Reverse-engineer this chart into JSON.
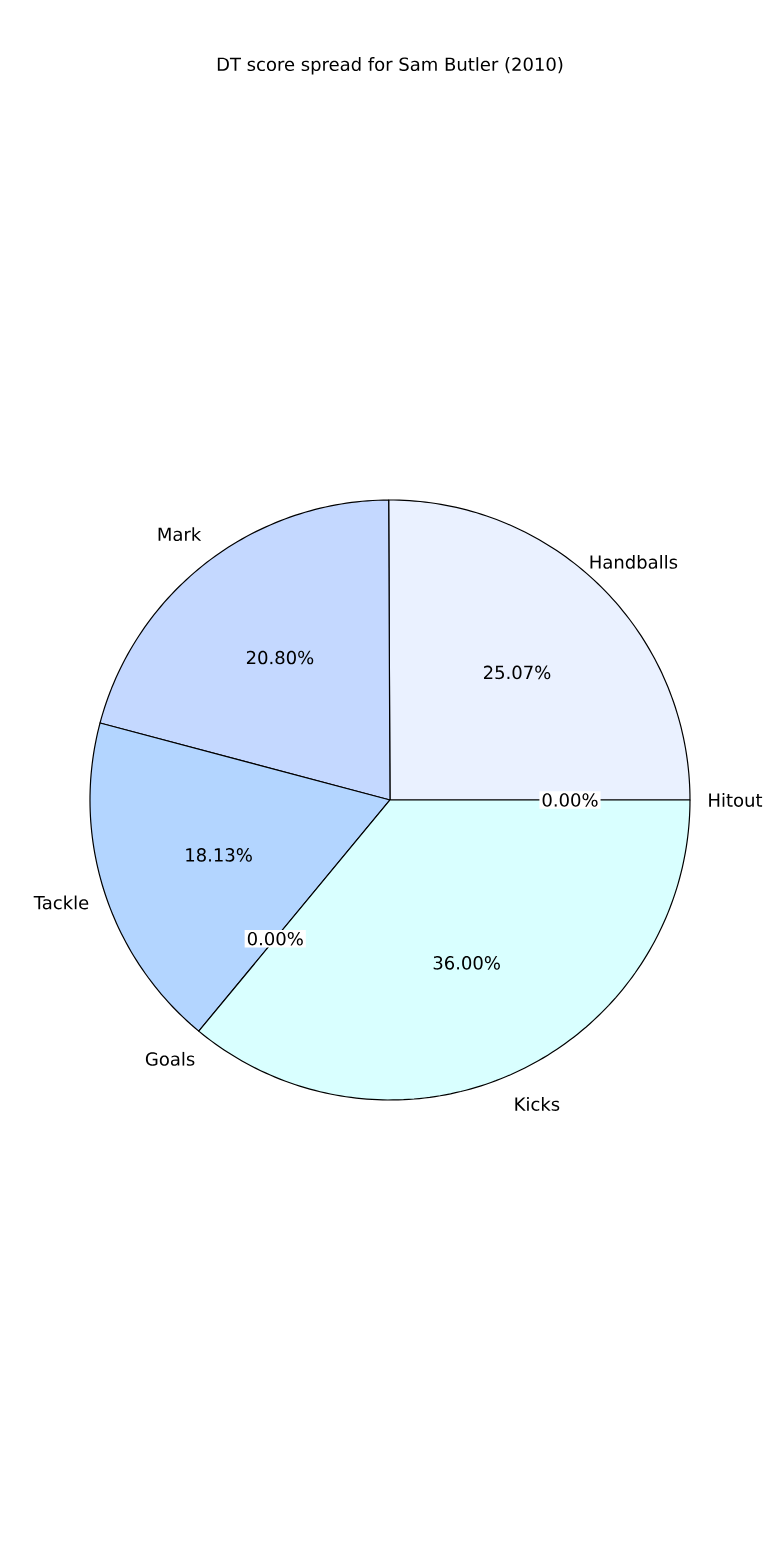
{
  "chart_data": {
    "type": "pie",
    "title": "DT score spread for Sam Butler (2010)",
    "categories": [
      "Handballs",
      "Mark",
      "Tackle",
      "Goals",
      "Kicks",
      "Hitout"
    ],
    "values": [
      25.07,
      20.8,
      18.13,
      0,
      36.0,
      0
    ],
    "value_labels": [
      "25.07%",
      "20.80%",
      "18.13%",
      "0.00%",
      "36.00%",
      "0.00%"
    ],
    "colors": [
      "#eaf1ff",
      "#c4d8ff",
      "#b3d5ff",
      "#b3ffff",
      "#d9ffff",
      "#ffffff"
    ]
  }
}
